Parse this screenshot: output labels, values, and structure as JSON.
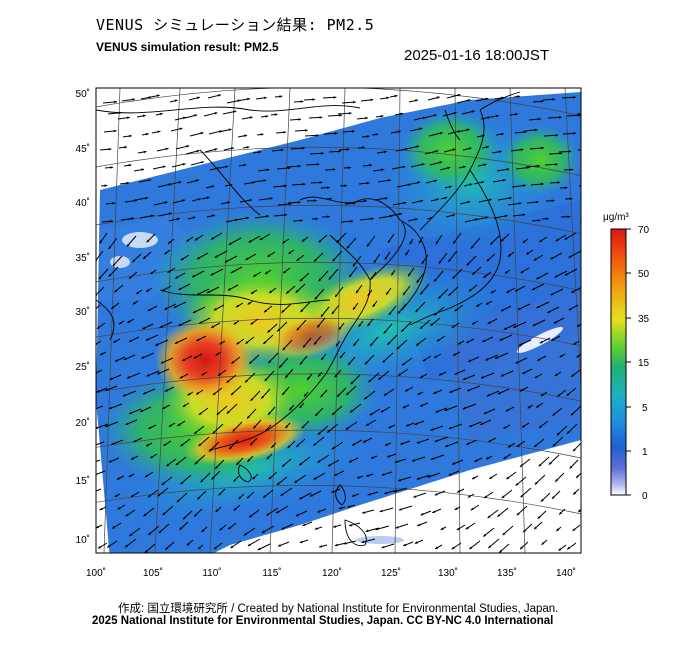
{
  "header": {
    "title_jp": "VENUS シミュレーション結果: PM2.5",
    "title_en": "VENUS simulation result: PM2.5",
    "timestamp": "2025-01-16 18:00JST"
  },
  "map": {
    "lon_ticks": [
      "100˚",
      "105˚",
      "110˚",
      "115˚",
      "120˚",
      "125˚",
      "130˚",
      "135˚",
      "140˚"
    ],
    "lat_ticks": [
      "50˚",
      "45˚",
      "40˚",
      "35˚",
      "30˚",
      "25˚",
      "20˚",
      "15˚",
      "10˚"
    ],
    "hotspots": [
      {
        "name": "south-china-hotspot",
        "lon": 108,
        "lat": 26.5,
        "value": 65
      },
      {
        "name": "guangdong-hotspot",
        "lon": 113,
        "lat": 21,
        "value": 60
      },
      {
        "name": "yangtze-plume",
        "lon": 118,
        "lat": 30,
        "value": 35
      },
      {
        "name": "yellow-sea-plume",
        "lon": 123,
        "lat": 32,
        "value": 30
      }
    ]
  },
  "colorbar": {
    "unit": "μg/m³",
    "ticks": [
      "70",
      "50",
      "35",
      "15",
      "5",
      "1",
      "0"
    ],
    "colors": [
      "#e02010",
      "#f06010",
      "#f0a010",
      "#e0e020",
      "#60d030",
      "#20b060",
      "#20b0b0",
      "#20a0e0",
      "#2070e0",
      "#2050c0",
      "#4060d0",
      "#8090e0",
      "#c0c8f0",
      "#ffffff"
    ]
  },
  "footer": {
    "credit_line": "作成: 国立環境研究所 / Created by National Institute for Environmental Studies, Japan.",
    "license_line": "2025 National Institute for Environmental Studies, Japan. CC BY-NC 4.0 International"
  }
}
